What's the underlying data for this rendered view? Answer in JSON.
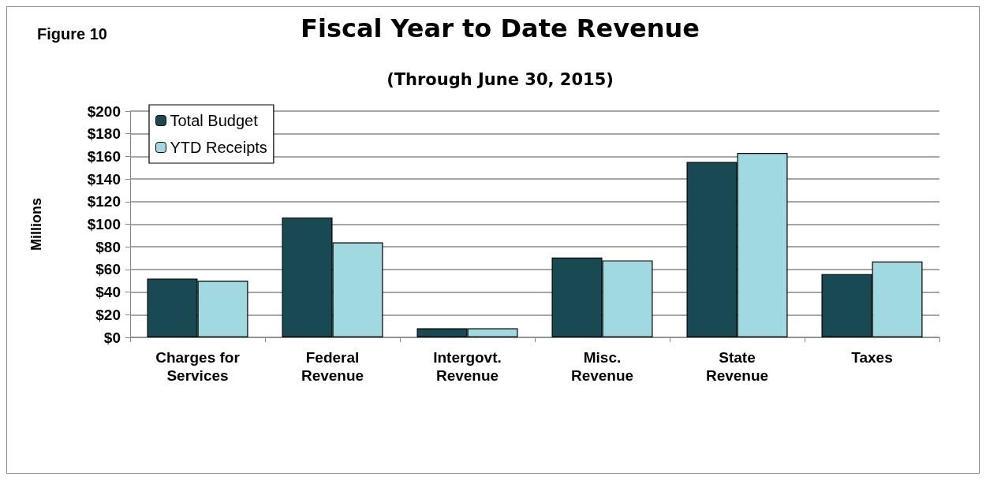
{
  "chart_data": {
    "type": "bar",
    "title": "Fiscal Year to Date Revenue",
    "subtitle": "(Through June 30, 2015)",
    "annotations": [
      "Figure 10"
    ],
    "ylabel": "Millions",
    "categories": [
      "Charges for\nServices",
      "Federal\nRevenue",
      "Intergovt.\nRevenue",
      "Misc.\nRevenue",
      "State\nRevenue",
      "Taxes"
    ],
    "series": [
      {
        "name": "Total Budget",
        "color": "#194a54",
        "values": [
          52,
          106,
          8,
          70.5,
          155,
          56
        ]
      },
      {
        "name": "YTD Receipts",
        "color": "#a1d9e1",
        "values": [
          50,
          84,
          8,
          68,
          163,
          67
        ]
      }
    ],
    "ylim": [
      0,
      200
    ],
    "yticks": [
      {
        "value": 0,
        "label": "$0"
      },
      {
        "value": 20,
        "label": "$20"
      },
      {
        "value": 40,
        "label": "$40"
      },
      {
        "value": 60,
        "label": "$60"
      },
      {
        "value": 80,
        "label": "$80"
      },
      {
        "value": 100,
        "label": "$100"
      },
      {
        "value": 120,
        "label": "$120"
      },
      {
        "value": 140,
        "label": "$140"
      },
      {
        "value": 160,
        "label": "$160"
      },
      {
        "value": 180,
        "label": "$180"
      },
      {
        "value": 200,
        "label": "$200"
      }
    ],
    "grid": "y",
    "legend": "top left"
  }
}
